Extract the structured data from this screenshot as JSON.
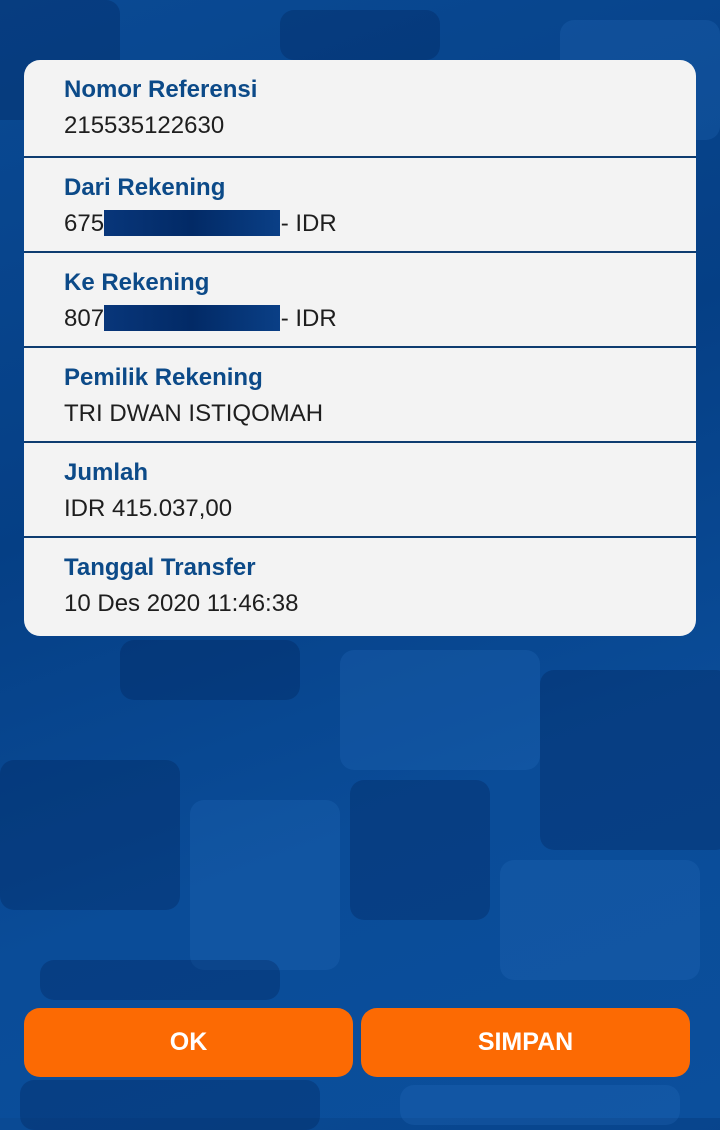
{
  "details": [
    {
      "label": "Nomor Referensi",
      "value": "215535122630"
    },
    {
      "label": "Dari Rekening",
      "value_prefix": "675",
      "value_suffix": " - IDR"
    },
    {
      "label": "Ke Rekening",
      "value_prefix": "807",
      "value_suffix": " - IDR"
    },
    {
      "label": "Pemilik Rekening",
      "value": "TRI DWAN ISTIQOMAH"
    },
    {
      "label": "Jumlah",
      "value": "IDR 415.037,00"
    },
    {
      "label": "Tanggal Transfer",
      "value": "10 Des 2020 11:46:38"
    }
  ],
  "buttons": {
    "ok": "OK",
    "save": "SIMPAN"
  },
  "colors": {
    "accent": "#fc6a03",
    "label": "#0c4a88",
    "background": "#053f85"
  }
}
